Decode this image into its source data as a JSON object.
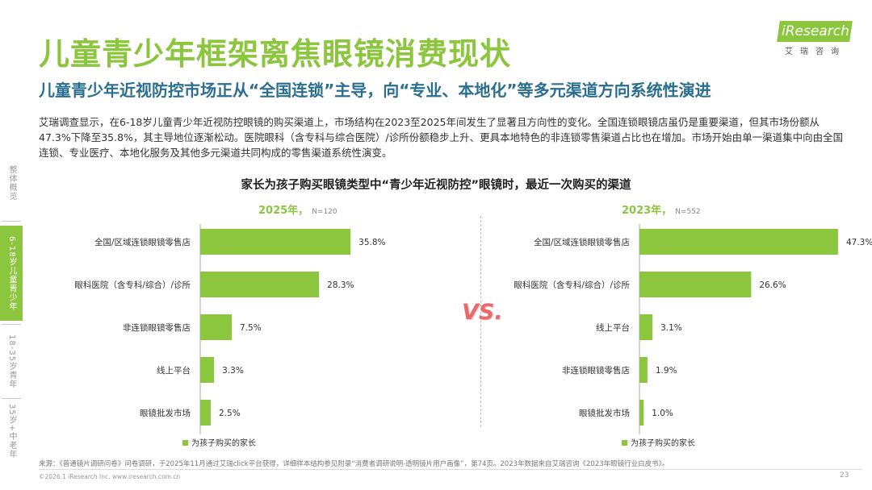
{
  "header": {
    "title": "儿童青少年框架离焦眼镜消费现状",
    "subtitle": "儿童青少年近视防控市场正从“全国连锁”主导，向“专业、本地化”等多元渠道方向系统性演进",
    "intro": "艾瑞调查显示，在6-18岁儿童青少年近视防控眼镜的购买渠道上，市场结构在2023至2025年间发生了显著且方向性的变化。全国连锁眼镜店虽仍是重要渠道，但其市场份额从47.3%下降至35.8%，其主导地位逐渐松动。医院眼科（含专科与综合医院）/诊所份额稳步上升、更具本地特色的非连锁零售渠道占比也在增加。市场开始由单一渠道集中向由全国连锁、专业医疗、本地化服务及其他多元渠道共同构成的零售渠道系统性演变。"
  },
  "logo": {
    "text": "iResearch",
    "cn": "艾瑞咨询"
  },
  "sidebar": {
    "items": [
      {
        "label": "整体概览",
        "active": false
      },
      {
        "label": "6-18岁儿童青少年",
        "active": true
      },
      {
        "label": "18-35岁青年",
        "active": false
      },
      {
        "label": "35岁+中老年",
        "active": false
      }
    ]
  },
  "chart_title": "家长为孩子购买眼镜类型中“青少年近视防控”眼镜时，最近一次购买的渠道",
  "vs_label": "VS.",
  "panel_left_label": "2025年，",
  "panel_left_n": "N=120",
  "panel_right_label": "2023年，",
  "panel_right_n": "N=552",
  "chart_data": [
    {
      "type": "bar",
      "orientation": "horizontal",
      "panel": "2025年，N=120",
      "categories": [
        "全国/区域连锁眼镜零售店",
        "眼科医院（含专科/综合）/诊所",
        "非连锁眼镜零售店",
        "线上平台",
        "眼镜批发市场"
      ],
      "series": [
        {
          "name": "为孩子购买的家长",
          "values": [
            35.8,
            28.3,
            7.5,
            3.3,
            2.5
          ]
        }
      ],
      "value_labels": [
        "35.8%",
        "28.3%",
        "7.5%",
        "3.3%",
        "2.5%"
      ],
      "xlim": [
        0,
        50
      ],
      "legend": "bottom-left",
      "color": "#8cc63f"
    },
    {
      "type": "bar",
      "orientation": "horizontal",
      "panel": "2023年，N=552",
      "categories": [
        "全国/区域连锁眼镜零售店",
        "眼科医院（含专科/综合）/诊所",
        "线上平台",
        "非连锁眼镜零售店",
        "眼镜批发市场"
      ],
      "series": [
        {
          "name": "为孩子购买的家长",
          "values": [
            47.3,
            26.6,
            3.1,
            1.9,
            1.0
          ]
        }
      ],
      "value_labels": [
        "47.3%",
        "26.6%",
        "3.1%",
        "1.9%",
        "1.0%"
      ],
      "xlim": [
        0,
        50
      ],
      "legend": "bottom-left",
      "color": "#8cc63f"
    }
  ],
  "footer": {
    "source": "来源：《普通镜片调研问卷》问卷调研，于2025年11月通过艾瑞click平台获得，详细样本结构参见附录“消费者调研说明-透明镜片用户画像”，第74页。2023年数据来自艾瑞咨询《2023年眼镜行业白皮书》。",
    "copyright": "©2026.1 iResearch Inc. www.iresearch.com.cn",
    "page": "23"
  }
}
